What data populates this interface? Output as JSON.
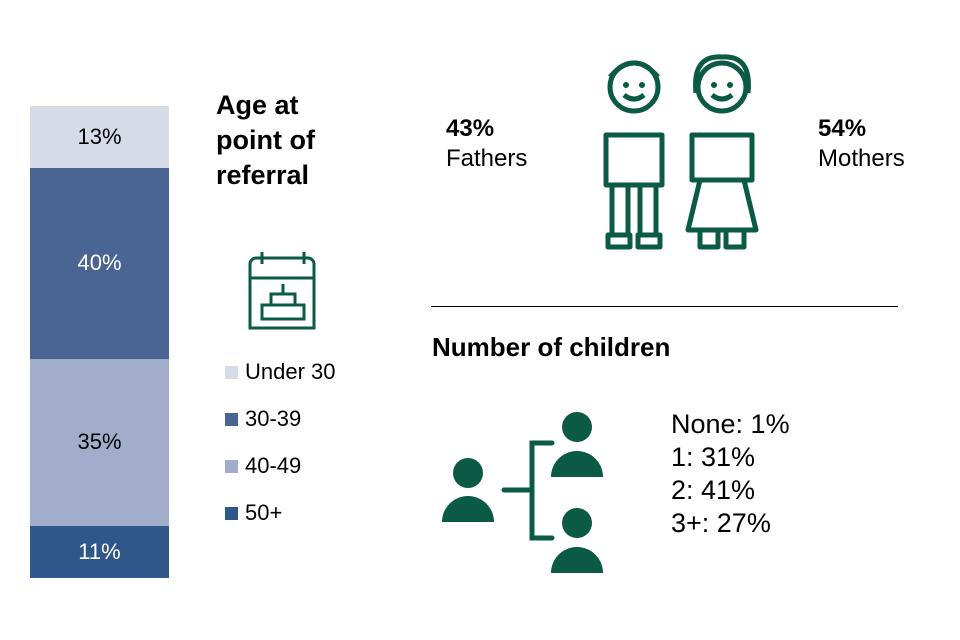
{
  "chart_data": {
    "type": "bar",
    "stacked": true,
    "title": "Age at point of referral",
    "categories": [
      "Under 30",
      "30-39",
      "40-49",
      "50+"
    ],
    "values": [
      13,
      40,
      35,
      11
    ],
    "labels": [
      "13%",
      "40%",
      "35%",
      "11%"
    ],
    "colors": [
      "#D6DBE8",
      "#4A6594",
      "#A1ADCB",
      "#30578A"
    ],
    "label_colors": [
      "#000000",
      "#FFFFFF",
      "#000000",
      "#FFFFFF"
    ],
    "legend_placement": "right"
  },
  "parents": {
    "fathers_pct": "43%",
    "fathers_label": "Fathers",
    "mothers_pct": "54%",
    "mothers_label": "Mothers"
  },
  "children": {
    "heading": "Number of children",
    "items": [
      "None: 1%",
      "1: 31%",
      "2: 41%",
      "3+: 27%"
    ]
  },
  "colors": {
    "icon_green": "#0B5A45"
  }
}
